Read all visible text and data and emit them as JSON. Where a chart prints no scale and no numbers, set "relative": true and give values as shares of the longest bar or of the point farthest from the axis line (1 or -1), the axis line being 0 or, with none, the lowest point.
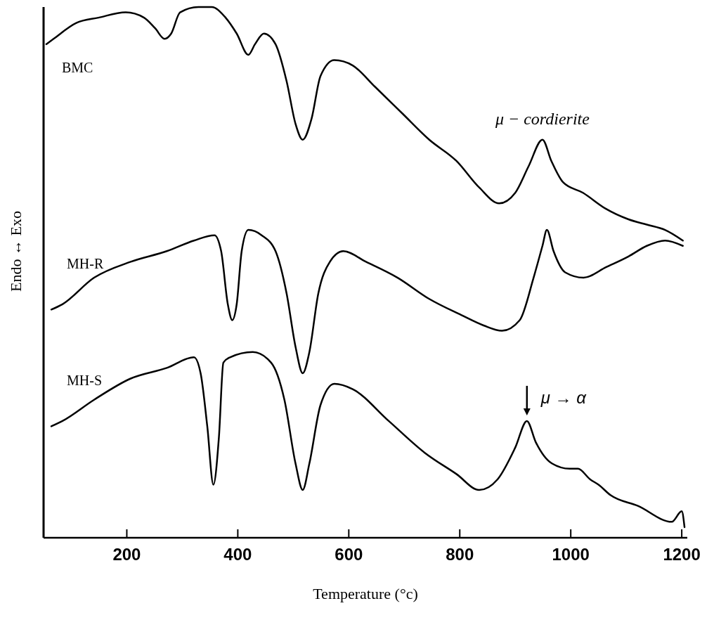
{
  "chart_data": {
    "type": "line",
    "relative": true,
    "xlabel": "Temperature (°c)",
    "ylabel": "Endo ↔ Exo",
    "xlim": [
      50,
      1210
    ],
    "xticks": [
      200,
      400,
      600,
      800,
      1000,
      1200
    ],
    "grid": false,
    "marker": "none",
    "line_style": "solid",
    "series": [
      {
        "name": "BMC",
        "color": "#000000",
        "x": [
          55,
          68,
          109,
          149,
          198,
          231,
          251,
          268,
          280,
          296,
          329,
          353,
          378,
          398,
          419,
          431,
          447,
          468,
          488,
          504,
          517,
          533,
          549,
          574,
          607,
          647,
          696,
          745,
          794,
          835,
          871,
          900,
          924,
          949,
          965,
          986,
          1022,
          1063,
          1104,
          1137,
          1170,
          1202
        ],
        "values": [
          0.93,
          0.94,
          0.97,
          0.98,
          0.99,
          0.98,
          0.96,
          0.94,
          0.95,
          0.99,
          1,
          1,
          0.98,
          0.95,
          0.91,
          0.93,
          0.95,
          0.93,
          0.86,
          0.78,
          0.75,
          0.79,
          0.87,
          0.9,
          0.89,
          0.85,
          0.8,
          0.75,
          0.71,
          0.66,
          0.63,
          0.65,
          0.7,
          0.75,
          0.71,
          0.67,
          0.65,
          0.62,
          0.6,
          0.59,
          0.58,
          0.56
        ]
      },
      {
        "name": "MH-R",
        "color": "#000000",
        "x": [
          64,
          84,
          141,
          207,
          272,
          321,
          358,
          370,
          382,
          390,
          398,
          407,
          419,
          443,
          468,
          488,
          504,
          517,
          529,
          545,
          566,
          590,
          631,
          688,
          745,
          802,
          843,
          876,
          908,
          933,
          949,
          957,
          969,
          990,
          1023,
          1064,
          1104,
          1137,
          1170,
          1202
        ],
        "values": [
          0.43,
          0.44,
          0.49,
          0.52,
          0.54,
          0.56,
          0.57,
          0.54,
          0.44,
          0.41,
          0.44,
          0.54,
          0.58,
          0.57,
          0.54,
          0.46,
          0.36,
          0.31,
          0.35,
          0.46,
          0.52,
          0.54,
          0.52,
          0.49,
          0.45,
          0.42,
          0.4,
          0.39,
          0.41,
          0.49,
          0.55,
          0.58,
          0.54,
          0.5,
          0.49,
          0.51,
          0.53,
          0.55,
          0.56,
          0.55
        ]
      },
      {
        "name": "MH-S",
        "color": "#000000",
        "x": [
          64,
          84,
          141,
          207,
          272,
          321,
          333,
          345,
          356,
          366,
          374,
          386,
          427,
          460,
          484,
          504,
          517,
          529,
          549,
          574,
          607,
          672,
          737,
          794,
          835,
          868,
          900,
          921,
          937,
          966,
          998,
          1013,
          1035,
          1050,
          1072,
          1121,
          1182,
          1200,
          1205
        ],
        "values": [
          0.21,
          0.22,
          0.26,
          0.3,
          0.32,
          0.34,
          0.31,
          0.21,
          0.1,
          0.19,
          0.33,
          0.34,
          0.35,
          0.33,
          0.26,
          0.14,
          0.09,
          0.14,
          0.25,
          0.29,
          0.28,
          0.22,
          0.16,
          0.12,
          0.09,
          0.11,
          0.17,
          0.22,
          0.18,
          0.14,
          0.13,
          0.13,
          0.11,
          0.1,
          0.08,
          0.06,
          0.03,
          0.05,
          0.02
        ]
      }
    ],
    "annotations": [
      {
        "text": "μ − cordierite",
        "x": 949,
        "y": 0.75
      },
      {
        "text": "μ → α",
        "x": 921,
        "y": 0.22
      }
    ]
  }
}
